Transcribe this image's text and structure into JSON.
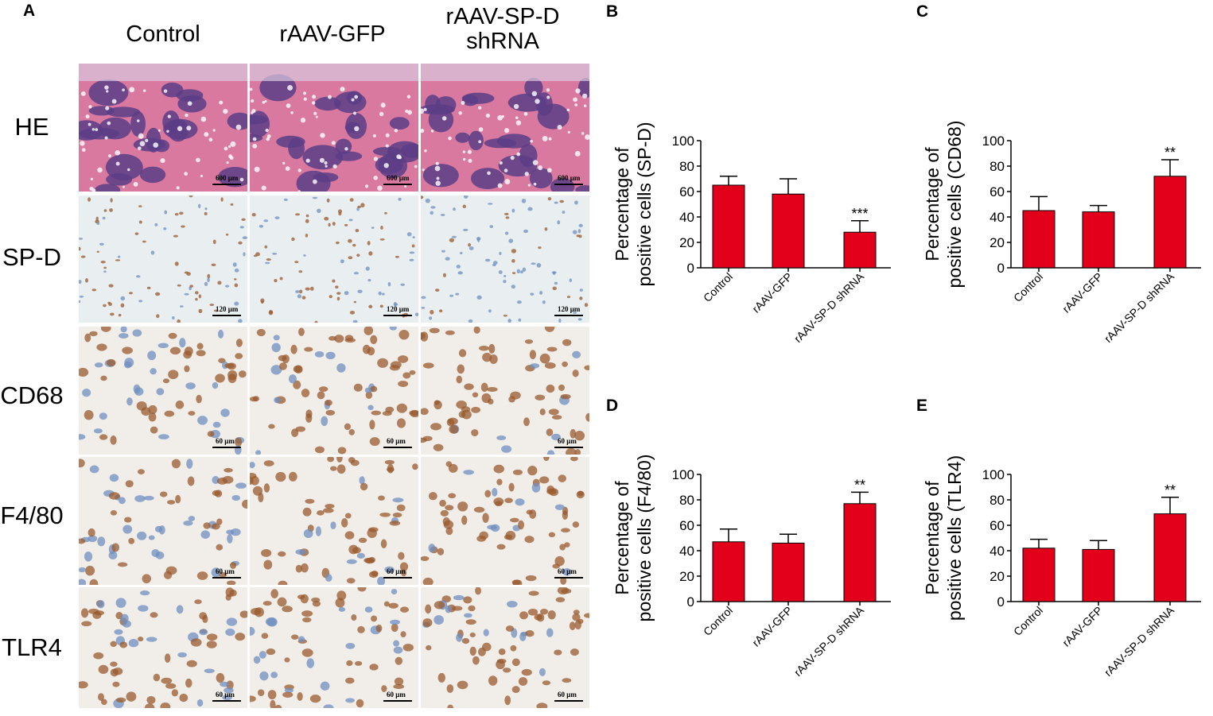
{
  "panel_A": {
    "letter": "A",
    "columns": [
      "Control",
      "rAAV-GFP",
      "rAAV-SP-D\nshRNA"
    ],
    "rows": [
      "HE",
      "SP-D",
      "CD68",
      "F4/80",
      "TLR4"
    ],
    "scale_labels": [
      "600 μm",
      "120 μm",
      "60 μm",
      "60 μm",
      "60 μm"
    ]
  },
  "colors": {
    "bar": "#e3001b",
    "he_pink": "#d9799f",
    "he_purple": "#5a3d86",
    "ihc_brown": "#9a5a2e",
    "ihc_blue": "#6f8fc0",
    "background_tissue": "#f1eee9"
  },
  "chart_data": [
    {
      "letter": "B",
      "type": "bar",
      "categories": [
        "Control",
        "rAAV-GFP",
        "rAAV-SP-D shRNA"
      ],
      "values": [
        65,
        58,
        28
      ],
      "errors": [
        7,
        12,
        9
      ],
      "significance": [
        "",
        "",
        "***"
      ],
      "ylabel": "Percentage of\npositive cells (SP-D)",
      "ylim": [
        0,
        100
      ],
      "yticks": [
        0,
        20,
        40,
        60,
        80,
        100
      ]
    },
    {
      "letter": "C",
      "type": "bar",
      "categories": [
        "Control",
        "rAAV-GFP",
        "rAAV-SP-D shRNA"
      ],
      "values": [
        45,
        44,
        72
      ],
      "errors": [
        11,
        5,
        13
      ],
      "significance": [
        "",
        "",
        "**"
      ],
      "ylabel": "Percentage of\npositive cells (CD68)",
      "ylim": [
        0,
        100
      ],
      "yticks": [
        0,
        20,
        40,
        60,
        80,
        100
      ]
    },
    {
      "letter": "D",
      "type": "bar",
      "categories": [
        "Control",
        "rAAV-GFP",
        "rAAV-SP-D shRNA"
      ],
      "values": [
        47,
        46,
        77
      ],
      "errors": [
        10,
        7,
        9
      ],
      "significance": [
        "",
        "",
        "**"
      ],
      "ylabel": "Percentage of\npositive cells (F4/80)",
      "ylim": [
        0,
        100
      ],
      "yticks": [
        0,
        20,
        40,
        60,
        80,
        100
      ]
    },
    {
      "letter": "E",
      "type": "bar",
      "categories": [
        "Control",
        "rAAV-GFP",
        "rAAV-SP-D shRNA"
      ],
      "values": [
        42,
        41,
        69
      ],
      "errors": [
        7,
        7,
        13
      ],
      "significance": [
        "",
        "",
        "**"
      ],
      "ylabel": "Percentage of\npositive cells (TLR4)",
      "ylim": [
        0,
        100
      ],
      "yticks": [
        0,
        20,
        40,
        60,
        80,
        100
      ]
    }
  ]
}
